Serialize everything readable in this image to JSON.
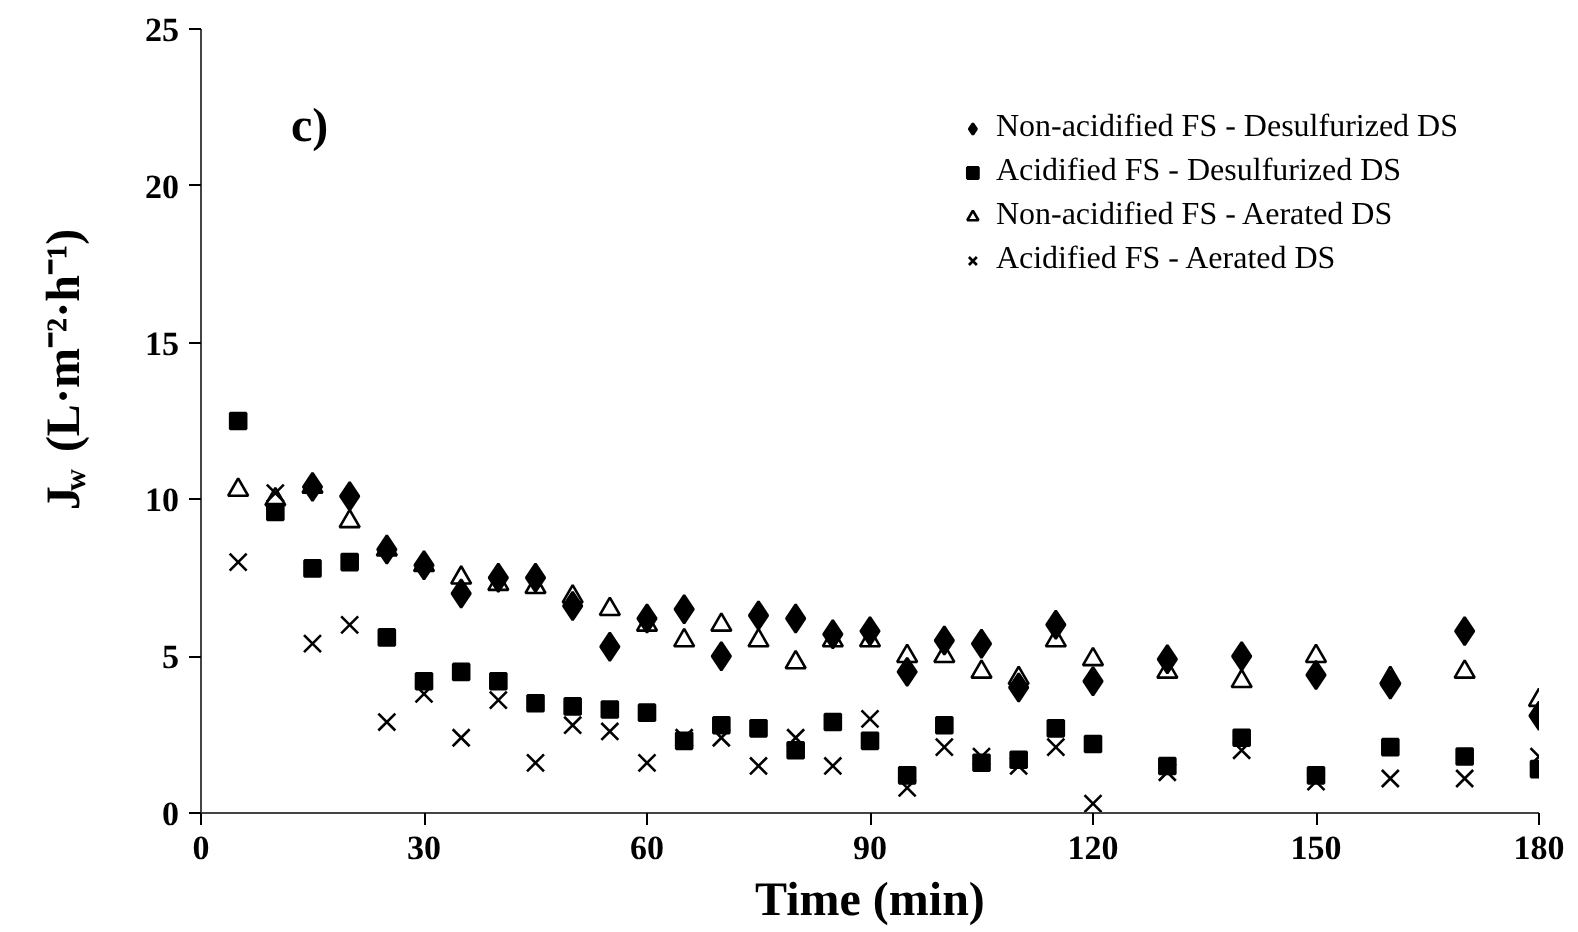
{
  "chart_data": {
    "type": "scatter",
    "xlabel": "Time (min)",
    "ylabel": "J$_{w}$ (L·m⁻²·h⁻¹)",
    "annotations": [
      "c)"
    ],
    "x": [
      5,
      10,
      15,
      20,
      25,
      30,
      35,
      40,
      45,
      50,
      55,
      60,
      65,
      70,
      75,
      80,
      85,
      90,
      95,
      100,
      105,
      110,
      115,
      120,
      130,
      140,
      150,
      160,
      170,
      180
    ],
    "series": [
      {
        "name": "Non-acidified FS - Desulfurized DS",
        "color": "#000000",
        "marker": "diamond",
        "values": [
          null,
          null,
          10.4,
          10.1,
          8.4,
          7.9,
          7.0,
          7.5,
          7.5,
          6.6,
          5.3,
          6.2,
          6.5,
          5.0,
          6.3,
          6.2,
          5.7,
          5.8,
          4.5,
          5.5,
          5.4,
          4.0,
          6.0,
          4.2,
          4.9,
          5.0,
          4.4,
          4.1,
          5.8,
          3.1
        ]
      },
      {
        "name": "Acidified FS - Desulfurized DS",
        "color": "#000000",
        "marker": "square",
        "values": [
          12.5,
          9.6,
          7.8,
          8.0,
          5.6,
          4.2,
          4.5,
          4.2,
          3.5,
          3.4,
          3.3,
          3.2,
          2.3,
          2.8,
          2.7,
          2.0,
          2.9,
          2.3,
          1.2,
          2.8,
          1.6,
          1.7,
          2.7,
          2.2,
          1.5,
          2.4,
          1.2,
          2.1,
          1.8,
          1.4
        ]
      },
      {
        "name": "Non-acidified FS - Aerated DS",
        "color": "#000000",
        "marker": "triangle",
        "values": [
          10.3,
          10.0,
          10.4,
          9.3,
          8.4,
          7.9,
          7.5,
          7.3,
          7.2,
          6.9,
          6.5,
          6.0,
          5.5,
          6.0,
          5.5,
          4.8,
          5.5,
          5.5,
          5.0,
          5.0,
          4.5,
          4.3,
          5.5,
          4.9,
          4.5,
          4.2,
          5.0,
          4.3,
          4.5,
          3.6
        ]
      },
      {
        "name": "Acidified FS - Aerated DS",
        "color": "#000000",
        "marker": "cross",
        "values": [
          8.0,
          10.2,
          5.4,
          6.0,
          2.9,
          3.8,
          2.4,
          3.6,
          1.6,
          2.8,
          2.6,
          1.6,
          2.4,
          2.4,
          1.5,
          2.4,
          1.5,
          3.0,
          0.8,
          2.1,
          1.8,
          1.5,
          2.1,
          0.3,
          1.3,
          2.0,
          1.0,
          1.1,
          1.1,
          1.8
        ]
      }
    ],
    "xlim": [
      0,
      180
    ],
    "xticks": [
      0,
      30,
      60,
      90,
      120,
      150,
      180
    ],
    "ylim": [
      0,
      25
    ],
    "yticks": [
      0,
      5,
      10,
      15,
      20,
      25
    ],
    "grid": false,
    "legend": "top right"
  }
}
